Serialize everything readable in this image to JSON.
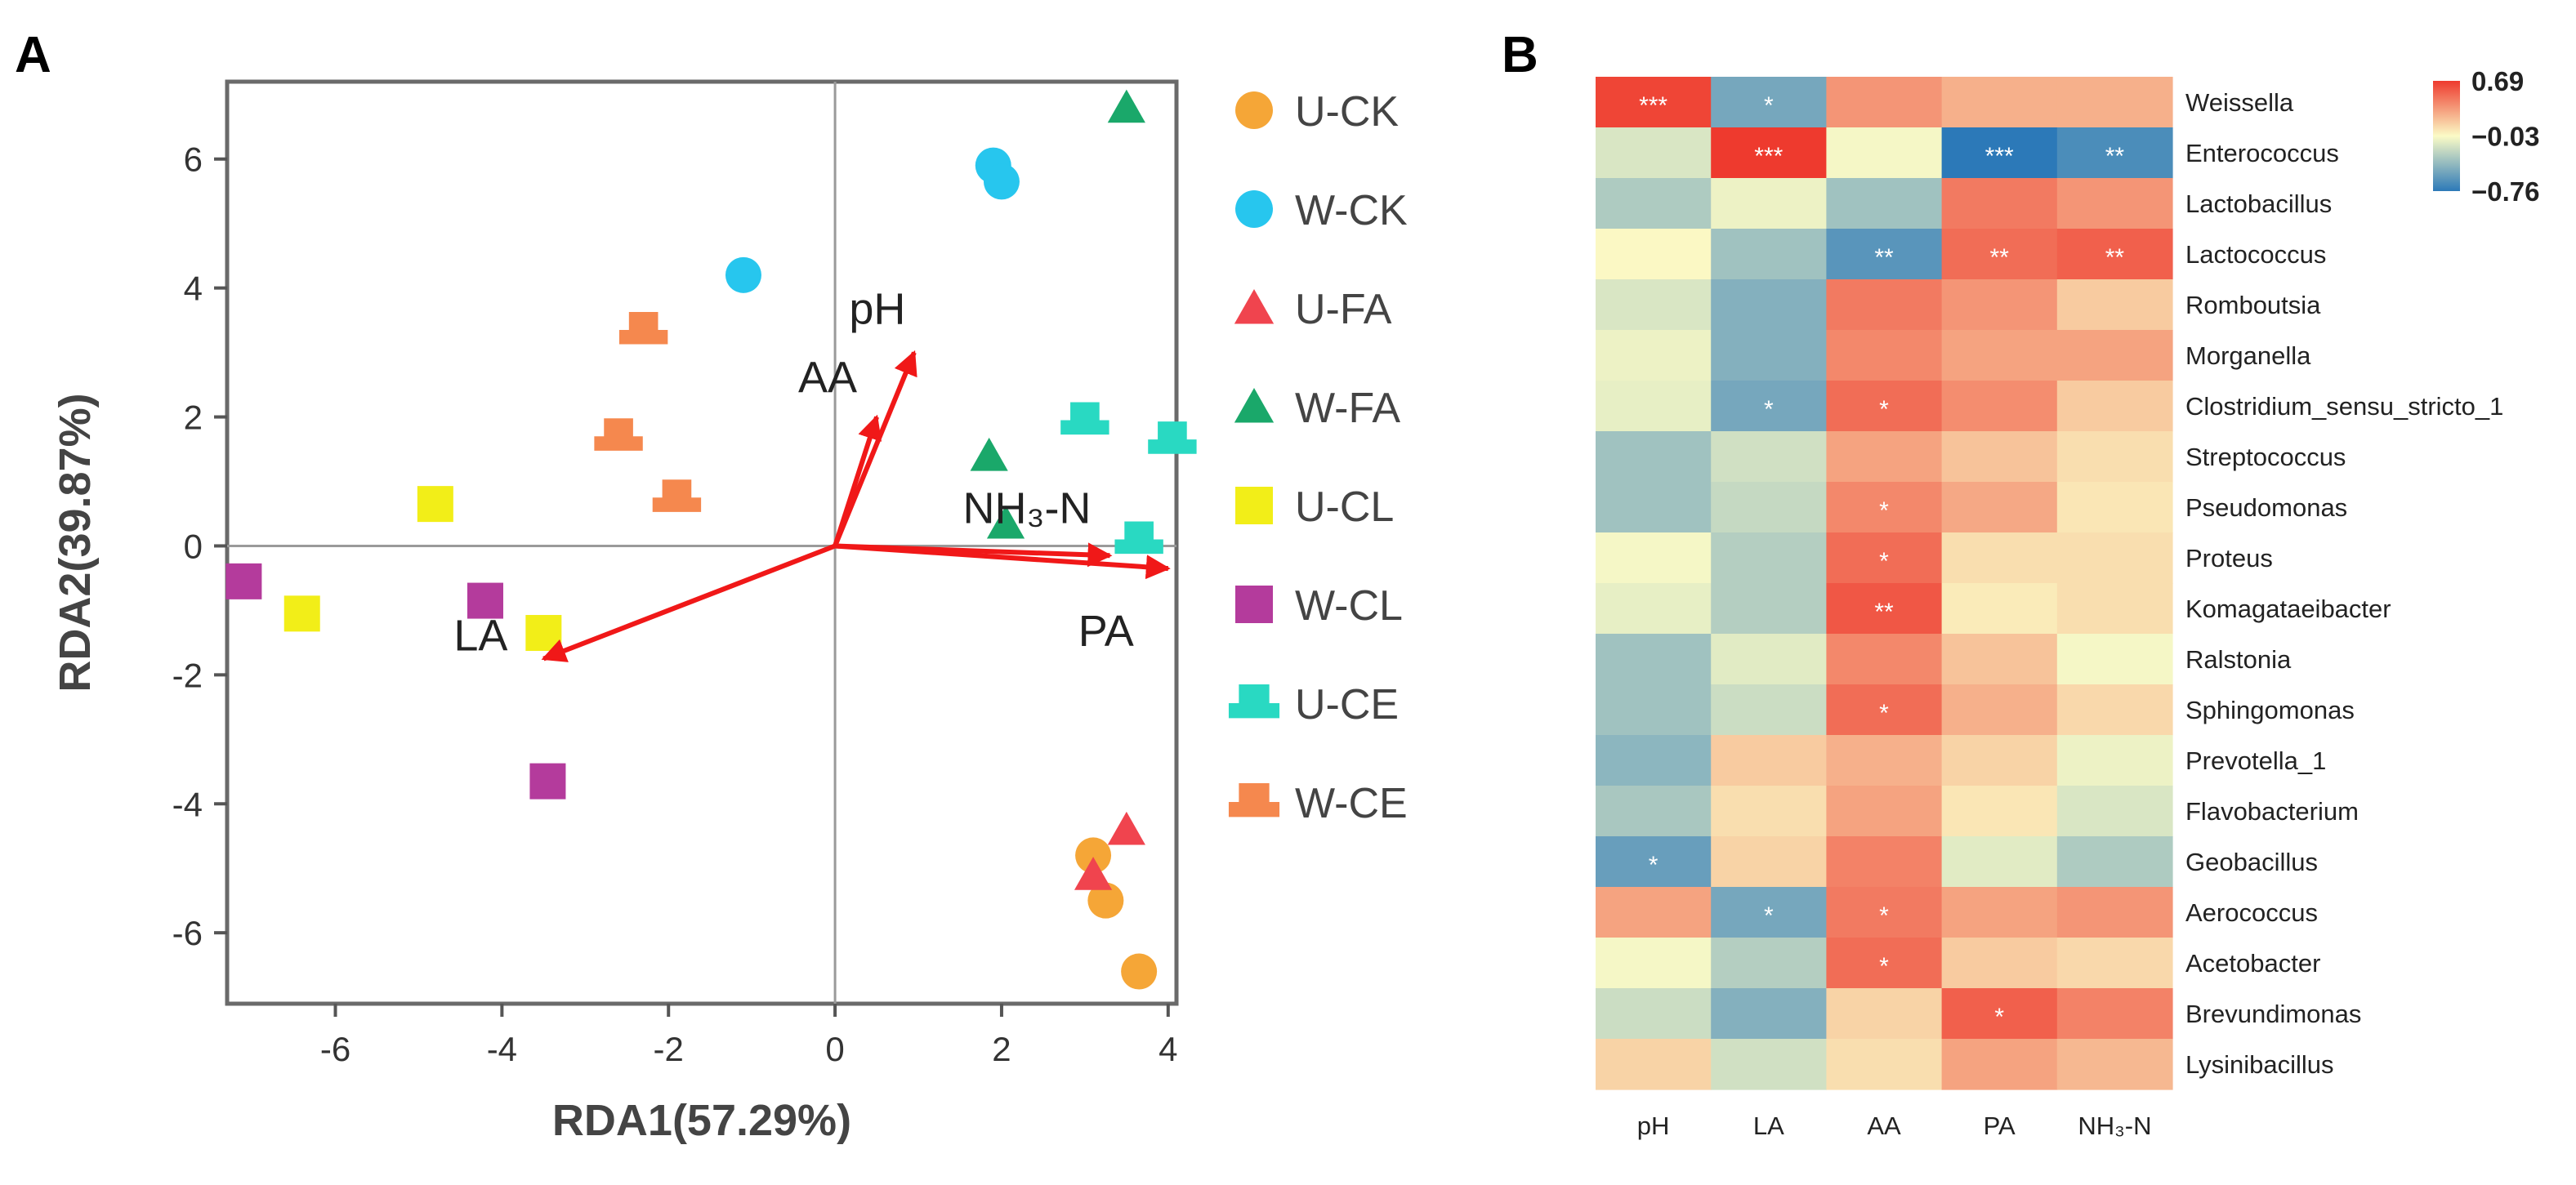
{
  "panel_labels": [
    "A",
    "B"
  ],
  "colors": {
    "U-CK": "#f5a637",
    "W-CK": "#27c6ee",
    "U-FA": "#f0444e",
    "W-FA": "#1aa86a",
    "U-CL": "#f2ee18",
    "W-CL": "#b43b9c",
    "U-CE": "#29d9c2",
    "W-CE": "#f5884e",
    "arrow": "#f01818",
    "heat_low": "#2c79b8",
    "heat_mid": "#fbfbc6",
    "heat_high": "#ee3a2e"
  },
  "chart_data": [
    {
      "type": "scatter",
      "panel": "A",
      "xlabel": "RDA1(57.29%)",
      "ylabel": "RDA2(39.87%)",
      "xlim": [
        -7.3,
        4.1
      ],
      "ylim": [
        -7.1,
        7.2
      ],
      "xticks": [
        -6,
        -4,
        -2,
        0,
        2,
        4
      ],
      "yticks": [
        -6,
        -4,
        -2,
        0,
        2,
        4,
        6
      ],
      "legend_position": "right",
      "series": [
        {
          "name": "U-CK",
          "marker": "circle",
          "points": [
            [
              3.1,
              -4.8
            ],
            [
              3.25,
              -5.5
            ],
            [
              3.65,
              -6.6
            ]
          ]
        },
        {
          "name": "W-CK",
          "marker": "circle",
          "points": [
            [
              -1.1,
              4.2
            ],
            [
              1.9,
              5.9
            ],
            [
              2.0,
              5.65
            ]
          ]
        },
        {
          "name": "U-FA",
          "marker": "triangle",
          "points": [
            [
              3.5,
              -4.4
            ],
            [
              3.1,
              -5.1
            ]
          ]
        },
        {
          "name": "W-FA",
          "marker": "triangle",
          "points": [
            [
              3.5,
              6.8
            ],
            [
              1.85,
              1.4
            ],
            [
              2.05,
              0.35
            ]
          ]
        },
        {
          "name": "U-CL",
          "marker": "square",
          "points": [
            [
              -4.8,
              0.65
            ],
            [
              -6.4,
              -1.05
            ],
            [
              -3.5,
              -1.35
            ]
          ]
        },
        {
          "name": "W-CL",
          "marker": "square",
          "points": [
            [
              -7.1,
              -0.55
            ],
            [
              -4.2,
              -0.85
            ],
            [
              -3.45,
              -3.65
            ]
          ]
        },
        {
          "name": "U-CE",
          "marker": "trapezoid",
          "points": [
            [
              3.0,
              1.95
            ],
            [
              4.05,
              1.65
            ],
            [
              3.65,
              0.1
            ]
          ]
        },
        {
          "name": "W-CE",
          "marker": "trapezoid",
          "points": [
            [
              -2.3,
              3.35
            ],
            [
              -2.6,
              1.7
            ],
            [
              -1.9,
              0.75
            ]
          ]
        }
      ],
      "vectors": [
        {
          "name": "pH",
          "x": 0.95,
          "y": 3.0
        },
        {
          "name": "AA",
          "x": 0.5,
          "y": 2.0
        },
        {
          "name": "NH₃-N",
          "x": 3.3,
          "y": -0.15
        },
        {
          "name": "PA",
          "x": 4.0,
          "y": -0.35
        },
        {
          "name": "LA",
          "x": -3.5,
          "y": -1.75
        }
      ]
    },
    {
      "type": "heatmap",
      "panel": "B",
      "x_categories": [
        "pH",
        "LA",
        "AA",
        "PA",
        "NH₃-N"
      ],
      "y_categories": [
        "Weissella",
        "Enterococcus",
        "Lactobacillus",
        "Lactococcus",
        "Romboutsia",
        "Morganella",
        "Clostridium_sensu_stricto_1",
        "Streptococcus",
        "Pseudomonas",
        "Proteus",
        "Komagataeibacter",
        "Ralstonia",
        "Sphingomonas",
        "Prevotella_1",
        "Flavobacterium",
        "Geobacillus",
        "Aerococcus",
        "Acetobacter",
        "Brevundimonas",
        "Lysinibacillus"
      ],
      "values": [
        [
          0.65,
          -0.5,
          0.35,
          0.25,
          0.25
        ],
        [
          -0.15,
          0.69,
          -0.05,
          -0.76,
          -0.65
        ],
        [
          -0.3,
          -0.08,
          -0.35,
          0.45,
          0.35
        ],
        [
          -0.02,
          -0.35,
          -0.6,
          0.5,
          0.55
        ],
        [
          -0.15,
          -0.45,
          0.45,
          0.35,
          0.15
        ],
        [
          -0.08,
          -0.45,
          0.4,
          0.3,
          0.3
        ],
        [
          -0.1,
          -0.5,
          0.5,
          0.38,
          0.15
        ],
        [
          -0.35,
          -0.18,
          0.3,
          0.18,
          0.08
        ],
        [
          -0.35,
          -0.22,
          0.4,
          0.28,
          0.05
        ],
        [
          -0.05,
          -0.28,
          0.5,
          0.08,
          0.08
        ],
        [
          -0.1,
          -0.28,
          0.58,
          0.03,
          0.08
        ],
        [
          -0.35,
          -0.12,
          0.4,
          0.18,
          -0.05
        ],
        [
          -0.35,
          -0.2,
          0.5,
          0.25,
          0.1
        ],
        [
          -0.42,
          0.15,
          0.25,
          0.12,
          -0.08
        ],
        [
          -0.32,
          0.08,
          0.3,
          0.05,
          -0.15
        ],
        [
          -0.55,
          0.12,
          0.42,
          -0.12,
          -0.3
        ],
        [
          0.3,
          -0.5,
          0.45,
          0.3,
          0.35
        ],
        [
          -0.05,
          -0.28,
          0.5,
          0.15,
          0.1
        ],
        [
          -0.2,
          -0.45,
          0.12,
          0.55,
          0.42
        ],
        [
          0.12,
          -0.18,
          0.08,
          0.3,
          0.22
        ]
      ],
      "significance": [
        [
          "***",
          "*",
          "",
          "",
          ""
        ],
        [
          "",
          "***",
          "",
          "***",
          "**"
        ],
        [
          "",
          "",
          "",
          "",
          ""
        ],
        [
          "",
          "",
          "**",
          "**",
          "**"
        ],
        [
          "",
          "",
          "",
          "",
          ""
        ],
        [
          "",
          "",
          "",
          "",
          ""
        ],
        [
          "",
          "*",
          "*",
          "",
          ""
        ],
        [
          "",
          "",
          "",
          "",
          ""
        ],
        [
          "",
          "",
          "*",
          "",
          ""
        ],
        [
          "",
          "",
          "*",
          "",
          ""
        ],
        [
          "",
          "",
          "**",
          "",
          ""
        ],
        [
          "",
          "",
          "",
          "",
          ""
        ],
        [
          "",
          "",
          "*",
          "",
          ""
        ],
        [
          "",
          "",
          "",
          "",
          ""
        ],
        [
          "",
          "",
          "",
          "",
          ""
        ],
        [
          "*",
          "",
          "",
          "",
          ""
        ],
        [
          "",
          "*",
          "*",
          "",
          ""
        ],
        [
          "",
          "",
          "*",
          "",
          ""
        ],
        [
          "",
          "",
          "",
          "*",
          ""
        ],
        [
          "",
          "",
          "",
          "",
          ""
        ]
      ],
      "colorbar": {
        "max": 0.69,
        "mid": -0.03,
        "min": -0.76,
        "labels": [
          "0.69",
          "−0.03",
          "−0.76"
        ]
      }
    }
  ]
}
